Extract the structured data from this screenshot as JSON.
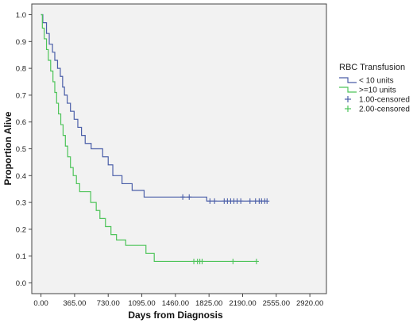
{
  "chart_data": {
    "type": "line",
    "chart_style": "kaplan-meier step",
    "title": "",
    "xlabel": "Days from Diagnosis",
    "ylabel": "Proportion Alive",
    "xlim": [
      -100,
      3100
    ],
    "ylim": [
      -0.04,
      1.04
    ],
    "x_ticks": [
      0,
      365,
      730,
      1095,
      1460,
      1825,
      2190,
      2555,
      2920
    ],
    "x_tick_labels": [
      "0.00",
      "365.00",
      "730.00",
      "1095.00",
      "1460.00",
      "1825.00",
      "2190.00",
      "2555.00",
      "2920.00"
    ],
    "y_ticks": [
      0,
      0.1,
      0.2,
      0.3,
      0.4,
      0.5,
      0.6,
      0.7,
      0.8,
      0.9,
      1.0
    ],
    "y_tick_labels": [
      "0.0",
      "0.1",
      "0.2",
      "0.3",
      "0.4",
      "0.5",
      "0.6",
      "0.7",
      "0.8",
      "0.9",
      "1.0"
    ],
    "grid": false,
    "plot_background": "#f2f2f2",
    "legend": {
      "position": "right",
      "title": "RBC Transfusion",
      "entries": [
        {
          "label": "< 10 units",
          "kind": "line",
          "series": 0
        },
        {
          "label": ">=10 units",
          "kind": "line",
          "series": 1
        },
        {
          "label": "1.00-censored",
          "kind": "censor",
          "series": 0
        },
        {
          "label": "2.00-censored",
          "kind": "censor",
          "series": 1
        }
      ]
    },
    "series": [
      {
        "name": "< 10 units",
        "color": "#4a5ea8",
        "steps": [
          [
            0,
            1.0
          ],
          [
            20,
            1.0
          ],
          [
            20,
            0.97
          ],
          [
            60,
            0.97
          ],
          [
            60,
            0.93
          ],
          [
            90,
            0.93
          ],
          [
            90,
            0.89
          ],
          [
            125,
            0.89
          ],
          [
            125,
            0.86
          ],
          [
            150,
            0.86
          ],
          [
            150,
            0.83
          ],
          [
            180,
            0.83
          ],
          [
            180,
            0.8
          ],
          [
            210,
            0.8
          ],
          [
            210,
            0.77
          ],
          [
            235,
            0.77
          ],
          [
            235,
            0.73
          ],
          [
            255,
            0.73
          ],
          [
            255,
            0.7
          ],
          [
            285,
            0.7
          ],
          [
            285,
            0.67
          ],
          [
            320,
            0.67
          ],
          [
            320,
            0.64
          ],
          [
            360,
            0.64
          ],
          [
            360,
            0.61
          ],
          [
            400,
            0.61
          ],
          [
            400,
            0.58
          ],
          [
            440,
            0.58
          ],
          [
            440,
            0.55
          ],
          [
            480,
            0.55
          ],
          [
            480,
            0.52
          ],
          [
            545,
            0.52
          ],
          [
            545,
            0.5
          ],
          [
            670,
            0.5
          ],
          [
            670,
            0.47
          ],
          [
            730,
            0.47
          ],
          [
            730,
            0.44
          ],
          [
            780,
            0.44
          ],
          [
            780,
            0.4
          ],
          [
            880,
            0.4
          ],
          [
            880,
            0.37
          ],
          [
            990,
            0.37
          ],
          [
            990,
            0.345
          ],
          [
            1120,
            0.345
          ],
          [
            1120,
            0.32
          ],
          [
            1800,
            0.32
          ],
          [
            1800,
            0.305
          ],
          [
            2455,
            0.305
          ]
        ],
        "censored": [
          [
            1540,
            0.32
          ],
          [
            1610,
            0.32
          ],
          [
            1835,
            0.305
          ],
          [
            1885,
            0.305
          ],
          [
            1990,
            0.305
          ],
          [
            2025,
            0.305
          ],
          [
            2060,
            0.305
          ],
          [
            2095,
            0.305
          ],
          [
            2130,
            0.305
          ],
          [
            2170,
            0.305
          ],
          [
            2270,
            0.305
          ],
          [
            2330,
            0.305
          ],
          [
            2370,
            0.305
          ],
          [
            2395,
            0.305
          ],
          [
            2430,
            0.305
          ],
          [
            2455,
            0.305
          ]
        ]
      },
      {
        "name": ">=10 units",
        "color": "#4ec45a",
        "steps": [
          [
            0,
            1.0
          ],
          [
            15,
            1.0
          ],
          [
            15,
            0.95
          ],
          [
            35,
            0.95
          ],
          [
            35,
            0.91
          ],
          [
            60,
            0.91
          ],
          [
            60,
            0.87
          ],
          [
            80,
            0.87
          ],
          [
            80,
            0.83
          ],
          [
            105,
            0.83
          ],
          [
            105,
            0.79
          ],
          [
            130,
            0.79
          ],
          [
            130,
            0.75
          ],
          [
            150,
            0.75
          ],
          [
            150,
            0.71
          ],
          [
            170,
            0.71
          ],
          [
            170,
            0.67
          ],
          [
            190,
            0.67
          ],
          [
            190,
            0.63
          ],
          [
            215,
            0.63
          ],
          [
            215,
            0.59
          ],
          [
            240,
            0.59
          ],
          [
            240,
            0.55
          ],
          [
            265,
            0.55
          ],
          [
            265,
            0.51
          ],
          [
            290,
            0.51
          ],
          [
            290,
            0.47
          ],
          [
            320,
            0.47
          ],
          [
            320,
            0.43
          ],
          [
            350,
            0.43
          ],
          [
            350,
            0.4
          ],
          [
            385,
            0.4
          ],
          [
            385,
            0.37
          ],
          [
            420,
            0.37
          ],
          [
            420,
            0.34
          ],
          [
            540,
            0.34
          ],
          [
            540,
            0.3
          ],
          [
            600,
            0.3
          ],
          [
            600,
            0.27
          ],
          [
            640,
            0.27
          ],
          [
            640,
            0.24
          ],
          [
            700,
            0.24
          ],
          [
            700,
            0.21
          ],
          [
            760,
            0.21
          ],
          [
            760,
            0.18
          ],
          [
            820,
            0.18
          ],
          [
            820,
            0.16
          ],
          [
            920,
            0.16
          ],
          [
            920,
            0.14
          ],
          [
            1140,
            0.14
          ],
          [
            1140,
            0.11
          ],
          [
            1230,
            0.11
          ],
          [
            1230,
            0.08
          ],
          [
            2340,
            0.08
          ]
        ],
        "censored": [
          [
            1660,
            0.08
          ],
          [
            1700,
            0.08
          ],
          [
            1725,
            0.08
          ],
          [
            1750,
            0.08
          ],
          [
            2085,
            0.08
          ],
          [
            2340,
            0.08
          ]
        ]
      }
    ]
  }
}
